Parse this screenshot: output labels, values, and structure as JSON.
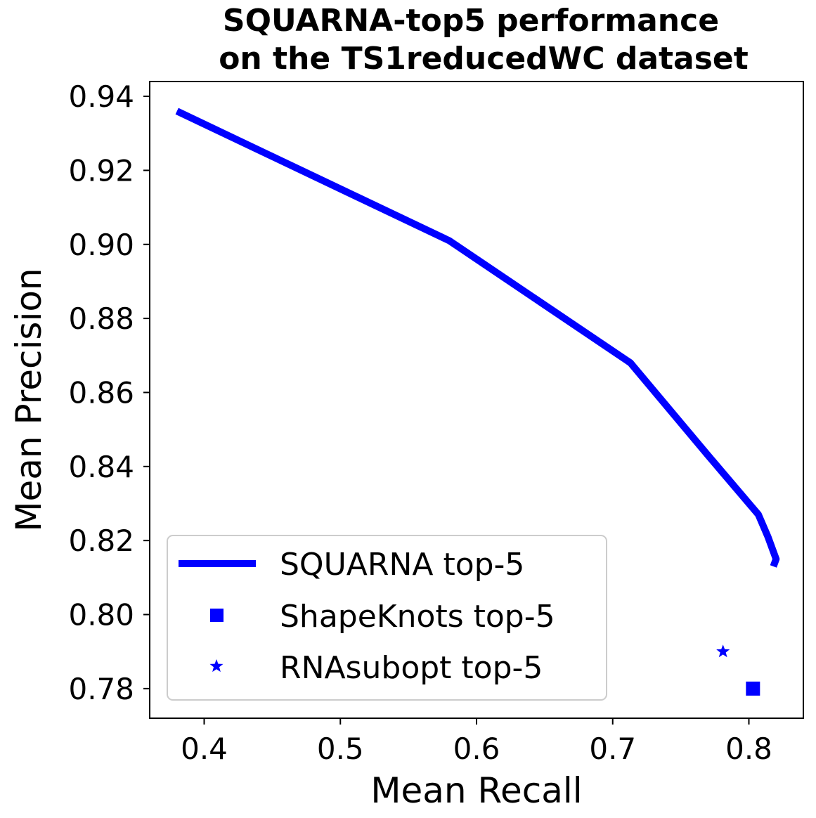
{
  "chart_data": {
    "type": "line",
    "title_lines": [
      "SQUARNA-top5 performance",
      "on the TS1reducedWC dataset"
    ],
    "xlabel": "Mean Recall",
    "ylabel": "Mean Precision",
    "xlim": [
      0.36,
      0.84
    ],
    "ylim": [
      0.772,
      0.944
    ],
    "x_ticks": [
      0.4,
      0.5,
      0.6,
      0.7,
      0.8
    ],
    "x_tick_labels": [
      "0.4",
      "0.5",
      "0.6",
      "0.7",
      "0.8"
    ],
    "y_ticks": [
      0.78,
      0.8,
      0.82,
      0.84,
      0.86,
      0.88,
      0.9,
      0.92,
      0.94
    ],
    "y_tick_labels": [
      "0.78",
      "0.80",
      "0.82",
      "0.84",
      "0.86",
      "0.88",
      "0.90",
      "0.92",
      "0.94"
    ],
    "grid": false,
    "legend_position": "lower-left",
    "color": "#0000ff",
    "series": [
      {
        "name": "SQUARNA top-5",
        "kind": "line",
        "x": [
          0.38,
          0.58,
          0.713,
          0.77,
          0.807,
          0.814,
          0.819,
          0.82,
          0.818
        ],
        "y": [
          0.936,
          0.901,
          0.868,
          0.843,
          0.827,
          0.821,
          0.816,
          0.815,
          0.813
        ]
      },
      {
        "name": "ShapeKnots top-5",
        "kind": "square",
        "x": [
          0.803
        ],
        "y": [
          0.78
        ]
      },
      {
        "name": "RNAsubopt top-5",
        "kind": "star",
        "x": [
          0.781
        ],
        "y": [
          0.79
        ]
      }
    ]
  }
}
